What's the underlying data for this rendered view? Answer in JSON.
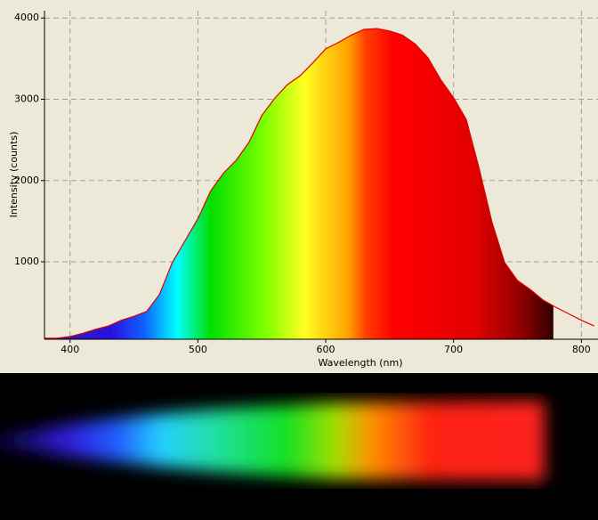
{
  "chart_data": {
    "type": "area",
    "x_label": "Wavelength (nm)",
    "y_label": "Intensity (counts)",
    "x": [
      380,
      390,
      400,
      410,
      420,
      430,
      440,
      450,
      460,
      470,
      480,
      490,
      500,
      510,
      520,
      530,
      540,
      550,
      560,
      570,
      580,
      590,
      600,
      610,
      620,
      630,
      640,
      650,
      660,
      670,
      680,
      690,
      700,
      710,
      720,
      730,
      740,
      750,
      760,
      770,
      780,
      790,
      800,
      810
    ],
    "values": [
      60,
      60,
      80,
      120,
      170,
      210,
      280,
      330,
      390,
      600,
      990,
      1260,
      1530,
      1870,
      2090,
      2250,
      2470,
      2800,
      3010,
      3180,
      3290,
      3450,
      3620,
      3700,
      3790,
      3860,
      3870,
      3840,
      3790,
      3680,
      3510,
      3240,
      3020,
      2750,
      2150,
      1490,
      990,
      770,
      660,
      530,
      440,
      360,
      280,
      210
    ],
    "color": "#e00000",
    "xlim": [
      380,
      813
    ],
    "ylim": [
      47,
      4090
    ],
    "xticks": [
      400,
      500,
      600,
      700,
      800
    ],
    "yticks": [
      1000,
      2000,
      3000,
      4000
    ],
    "grid": true
  }
}
